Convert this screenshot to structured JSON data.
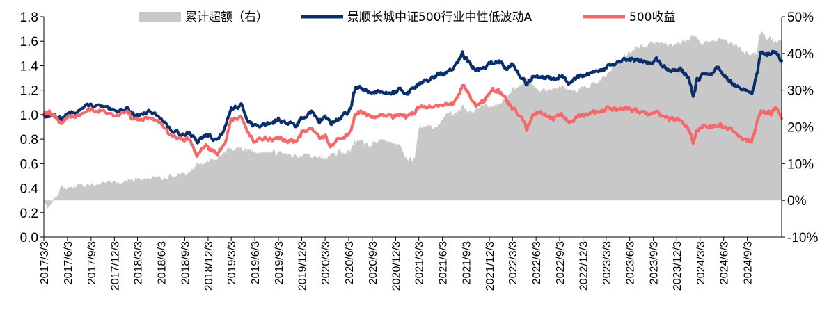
{
  "chart_data": {
    "type": "line",
    "legend": {
      "placement": "top",
      "entries": [
        {
          "label": "累计超额（右）",
          "type": "area",
          "color": "#c8c8c8"
        },
        {
          "label": "景顺长城中证500行业中性低波动A",
          "type": "line",
          "color": "#0a2f6b"
        },
        {
          "label": "500收益",
          "type": "line",
          "color": "#f46a6a"
        }
      ]
    },
    "y_left": {
      "ylim": [
        0.0,
        1.8
      ],
      "ticks": [
        "0.0",
        "0.2",
        "0.4",
        "0.6",
        "0.8",
        "1.0",
        "1.2",
        "1.4",
        "1.6",
        "1.8"
      ]
    },
    "y_right": {
      "ylim": [
        -0.1,
        0.5
      ],
      "ticks": [
        "-10%",
        "0%",
        "10%",
        "20%",
        "30%",
        "40%",
        "50%"
      ]
    },
    "x_ticks": [
      "2017/3/3",
      "2017/6/3",
      "2017/9/3",
      "2017/12/3",
      "2018/3/3",
      "2018/6/3",
      "2018/9/3",
      "2018/12/3",
      "2019/3/3",
      "2019/6/3",
      "2019/9/3",
      "2019/12/3",
      "2020/3/3",
      "2020/6/3",
      "2020/9/3",
      "2020/12/3",
      "2021/3/3",
      "2021/6/3",
      "2021/9/3",
      "2021/12/3",
      "2022/3/3",
      "2022/6/3",
      "2022/9/3",
      "2022/12/3",
      "2023/3/3",
      "2023/6/3",
      "2023/9/3",
      "2023/12/3",
      "2024/3/3",
      "2024/6/3",
      "2024/9/3"
    ],
    "x_range": [
      "2017/3/3",
      "2025/1/15"
    ],
    "grid": false,
    "series": [
      {
        "name": "景顺长城中证500行业中性低波动A",
        "axis": "left",
        "x": [
          "2017/3/3",
          "2017/3/20",
          "2017/4/10",
          "2017/5/10",
          "2017/6/3",
          "2017/7/15",
          "2017/9/3",
          "2017/10/20",
          "2017/12/3",
          "2018/1/20",
          "2018/2/10",
          "2018/3/3",
          "2018/4/15",
          "2018/6/3",
          "2018/7/10",
          "2018/8/20",
          "2018/9/20",
          "2018/10/20",
          "2018/11/20",
          "2018/12/15",
          "2019/1/10",
          "2019/2/10",
          "2019/3/3",
          "2019/4/10",
          "2019/5/10",
          "2019/6/3",
          "2019/7/10",
          "2019/8/10",
          "2019/9/3",
          "2019/10/10",
          "2019/11/15",
          "2019/12/3",
          "2020/1/10",
          "2020/2/10",
          "2020/3/3",
          "2020/3/25",
          "2020/4/20",
          "2020/5/20",
          "2020/6/10",
          "2020/6/25",
          "2020/7/10",
          "2020/8/10",
          "2020/9/3",
          "2020/10/10",
          "2020/11/20",
          "2020/12/15",
          "2021/1/15",
          "2021/2/15",
          "2021/3/3",
          "2021/4/10",
          "2021/5/15",
          "2021/6/15",
          "2021/7/20",
          "2021/8/20",
          "2021/9/10",
          "2021/10/10",
          "2021/11/10",
          "2021/12/10",
          "2022/1/10",
          "2022/2/10",
          "2022/3/3",
          "2022/4/10",
          "2022/4/27",
          "2022/5/20",
          "2022/6/15",
          "2022/7/10",
          "2022/8/10",
          "2022/9/10",
          "2022/10/10",
          "2022/11/10",
          "2022/12/10",
          "2023/1/15",
          "2023/2/15",
          "2023/3/15",
          "2023/4/15",
          "2023/5/15",
          "2023/6/15",
          "2023/7/15",
          "2023/8/15",
          "2023/9/15",
          "2023/10/20",
          "2023/11/20",
          "2023/12/20",
          "2024/1/20",
          "2024/2/5",
          "2024/2/20",
          "2024/3/15",
          "2024/4/15",
          "2024/5/15",
          "2024/6/15",
          "2024/7/15",
          "2024/8/15",
          "2024/9/20",
          "2024/10/8",
          "2024/10/25",
          "2024/11/15",
          "2024/12/5",
          "2024/12/20",
          "2025/1/15"
        ],
        "values": [
          1.0,
          0.99,
          1.0,
          0.96,
          1.0,
          1.04,
          1.08,
          1.06,
          1.02,
          1.06,
          1.01,
          0.99,
          1.02,
          0.98,
          0.87,
          0.84,
          0.86,
          0.77,
          0.83,
          0.82,
          0.79,
          0.9,
          1.05,
          1.08,
          0.95,
          0.9,
          0.92,
          0.94,
          0.96,
          0.93,
          0.91,
          0.98,
          1.02,
          0.94,
          0.99,
          0.93,
          0.96,
          1.0,
          1.04,
          1.2,
          1.22,
          1.2,
          1.18,
          1.2,
          1.18,
          1.2,
          1.18,
          1.22,
          1.26,
          1.28,
          1.32,
          1.34,
          1.38,
          1.5,
          1.44,
          1.36,
          1.38,
          1.42,
          1.44,
          1.38,
          1.42,
          1.3,
          1.24,
          1.3,
          1.32,
          1.31,
          1.28,
          1.33,
          1.24,
          1.3,
          1.32,
          1.34,
          1.36,
          1.4,
          1.42,
          1.44,
          1.45,
          1.44,
          1.42,
          1.45,
          1.38,
          1.36,
          1.37,
          1.3,
          1.14,
          1.28,
          1.32,
          1.34,
          1.38,
          1.3,
          1.24,
          1.2,
          1.16,
          1.3,
          1.5,
          1.48,
          1.5,
          1.52,
          1.44
        ]
      },
      {
        "name": "500收益",
        "axis": "left",
        "x": [
          "2017/3/3",
          "2017/3/20",
          "2017/4/10",
          "2017/5/10",
          "2017/6/3",
          "2017/7/15",
          "2017/9/3",
          "2017/10/20",
          "2017/12/3",
          "2018/1/20",
          "2018/2/10",
          "2018/3/3",
          "2018/4/15",
          "2018/6/3",
          "2018/7/10",
          "2018/8/20",
          "2018/9/20",
          "2018/10/20",
          "2018/11/20",
          "2018/12/15",
          "2019/1/10",
          "2019/2/10",
          "2019/3/3",
          "2019/4/10",
          "2019/5/10",
          "2019/6/3",
          "2019/7/10",
          "2019/8/10",
          "2019/9/3",
          "2019/10/10",
          "2019/11/15",
          "2019/12/3",
          "2020/1/10",
          "2020/2/10",
          "2020/3/3",
          "2020/3/25",
          "2020/4/20",
          "2020/5/20",
          "2020/6/10",
          "2020/6/25",
          "2020/7/10",
          "2020/8/10",
          "2020/9/3",
          "2020/10/10",
          "2020/11/20",
          "2020/12/15",
          "2021/1/15",
          "2021/2/15",
          "2021/3/3",
          "2021/4/10",
          "2021/5/15",
          "2021/6/15",
          "2021/7/20",
          "2021/8/20",
          "2021/9/10",
          "2021/10/10",
          "2021/11/10",
          "2021/12/10",
          "2022/1/10",
          "2022/2/10",
          "2022/3/3",
          "2022/4/10",
          "2022/4/27",
          "2022/5/20",
          "2022/6/15",
          "2022/7/10",
          "2022/8/10",
          "2022/9/10",
          "2022/10/10",
          "2022/11/10",
          "2022/12/10",
          "2023/1/15",
          "2023/2/15",
          "2023/3/15",
          "2023/4/15",
          "2023/5/15",
          "2023/6/15",
          "2023/7/15",
          "2023/8/15",
          "2023/9/15",
          "2023/10/20",
          "2023/11/20",
          "2023/12/20",
          "2024/1/20",
          "2024/2/5",
          "2024/2/20",
          "2024/3/15",
          "2024/4/15",
          "2024/5/15",
          "2024/6/15",
          "2024/7/15",
          "2024/8/15",
          "2024/9/20",
          "2024/10/8",
          "2024/10/25",
          "2024/11/15",
          "2024/12/5",
          "2024/12/20",
          "2025/1/15"
        ],
        "values": [
          1.0,
          1.02,
          1.0,
          0.93,
          0.98,
          1.0,
          1.04,
          1.03,
          0.98,
          1.02,
          0.97,
          0.95,
          0.97,
          0.93,
          0.82,
          0.79,
          0.8,
          0.67,
          0.74,
          0.71,
          0.68,
          0.78,
          0.96,
          0.98,
          0.84,
          0.78,
          0.81,
          0.8,
          0.81,
          0.78,
          0.79,
          0.85,
          0.88,
          0.8,
          0.82,
          0.74,
          0.78,
          0.82,
          0.86,
          0.96,
          1.02,
          1.0,
          0.98,
          1.0,
          0.98,
          1.0,
          0.98,
          1.02,
          1.06,
          1.06,
          1.08,
          1.08,
          1.1,
          1.24,
          1.18,
          1.08,
          1.1,
          1.2,
          1.2,
          1.1,
          1.06,
          0.98,
          0.87,
          0.98,
          1.02,
          1.0,
          0.96,
          1.0,
          0.93,
          0.98,
          1.0,
          1.02,
          1.04,
          1.06,
          1.04,
          1.06,
          1.04,
          1.02,
          1.0,
          1.01,
          0.97,
          0.96,
          0.95,
          0.87,
          0.76,
          0.88,
          0.9,
          0.9,
          0.92,
          0.88,
          0.86,
          0.8,
          0.78,
          0.9,
          1.04,
          1.02,
          1.0,
          1.06,
          0.97
        ]
      },
      {
        "name": "累计超额（右）",
        "axis": "right",
        "type": "area",
        "x": [
          "2017/3/3",
          "2017/3/20",
          "2017/4/10",
          "2017/5/10",
          "2017/6/3",
          "2017/7/15",
          "2017/9/3",
          "2017/10/20",
          "2017/12/3",
          "2018/1/20",
          "2018/2/10",
          "2018/3/3",
          "2018/4/15",
          "2018/6/3",
          "2018/7/10",
          "2018/8/20",
          "2018/9/20",
          "2018/10/20",
          "2018/11/20",
          "2018/12/15",
          "2019/1/10",
          "2019/2/10",
          "2019/3/3",
          "2019/4/10",
          "2019/5/10",
          "2019/6/3",
          "2019/7/10",
          "2019/8/10",
          "2019/9/3",
          "2019/10/10",
          "2019/11/15",
          "2019/12/3",
          "2020/1/10",
          "2020/2/10",
          "2020/3/3",
          "2020/3/25",
          "2020/4/20",
          "2020/5/20",
          "2020/6/10",
          "2020/6/25",
          "2020/7/10",
          "2020/8/10",
          "2020/9/3",
          "2020/10/10",
          "2020/11/20",
          "2020/12/15",
          "2021/1/15",
          "2021/2/15",
          "2021/3/3",
          "2021/4/10",
          "2021/5/15",
          "2021/6/15",
          "2021/7/20",
          "2021/8/20",
          "2021/9/10",
          "2021/10/10",
          "2021/11/10",
          "2021/12/10",
          "2022/1/10",
          "2022/2/10",
          "2022/3/3",
          "2022/4/10",
          "2022/4/27",
          "2022/5/20",
          "2022/6/15",
          "2022/7/10",
          "2022/8/10",
          "2022/9/10",
          "2022/10/10",
          "2022/11/10",
          "2022/12/10",
          "2023/1/15",
          "2023/2/15",
          "2023/3/15",
          "2023/4/15",
          "2023/5/15",
          "2023/6/15",
          "2023/7/15",
          "2023/8/15",
          "2023/9/15",
          "2023/10/20",
          "2023/11/20",
          "2023/12/20",
          "2024/1/20",
          "2024/2/5",
          "2024/2/20",
          "2024/3/15",
          "2024/4/15",
          "2024/5/15",
          "2024/6/15",
          "2024/7/15",
          "2024/8/15",
          "2024/9/20",
          "2024/10/8",
          "2024/10/25",
          "2024/11/15",
          "2024/12/5",
          "2024/12/20",
          "2025/1/15"
        ],
        "values": [
          0.0,
          -0.02,
          0.0,
          0.035,
          0.03,
          0.04,
          0.04,
          0.045,
          0.05,
          0.05,
          0.055,
          0.055,
          0.06,
          0.06,
          0.065,
          0.07,
          0.075,
          0.1,
          0.1,
          0.11,
          0.12,
          0.13,
          0.14,
          0.14,
          0.135,
          0.135,
          0.13,
          0.13,
          0.13,
          0.125,
          0.12,
          0.12,
          0.12,
          0.115,
          0.11,
          0.125,
          0.13,
          0.13,
          0.135,
          0.16,
          0.16,
          0.155,
          0.155,
          0.16,
          0.16,
          0.15,
          0.11,
          0.11,
          0.2,
          0.2,
          0.2,
          0.23,
          0.24,
          0.25,
          0.24,
          0.25,
          0.26,
          0.25,
          0.26,
          0.28,
          0.3,
          0.32,
          0.33,
          0.31,
          0.3,
          0.3,
          0.3,
          0.31,
          0.3,
          0.3,
          0.31,
          0.32,
          0.33,
          0.35,
          0.38,
          0.39,
          0.41,
          0.42,
          0.42,
          0.43,
          0.42,
          0.42,
          0.43,
          0.44,
          0.45,
          0.44,
          0.43,
          0.43,
          0.44,
          0.43,
          0.42,
          0.41,
          0.4,
          0.4,
          0.46,
          0.44,
          0.44,
          0.43,
          0.44
        ]
      }
    ]
  }
}
